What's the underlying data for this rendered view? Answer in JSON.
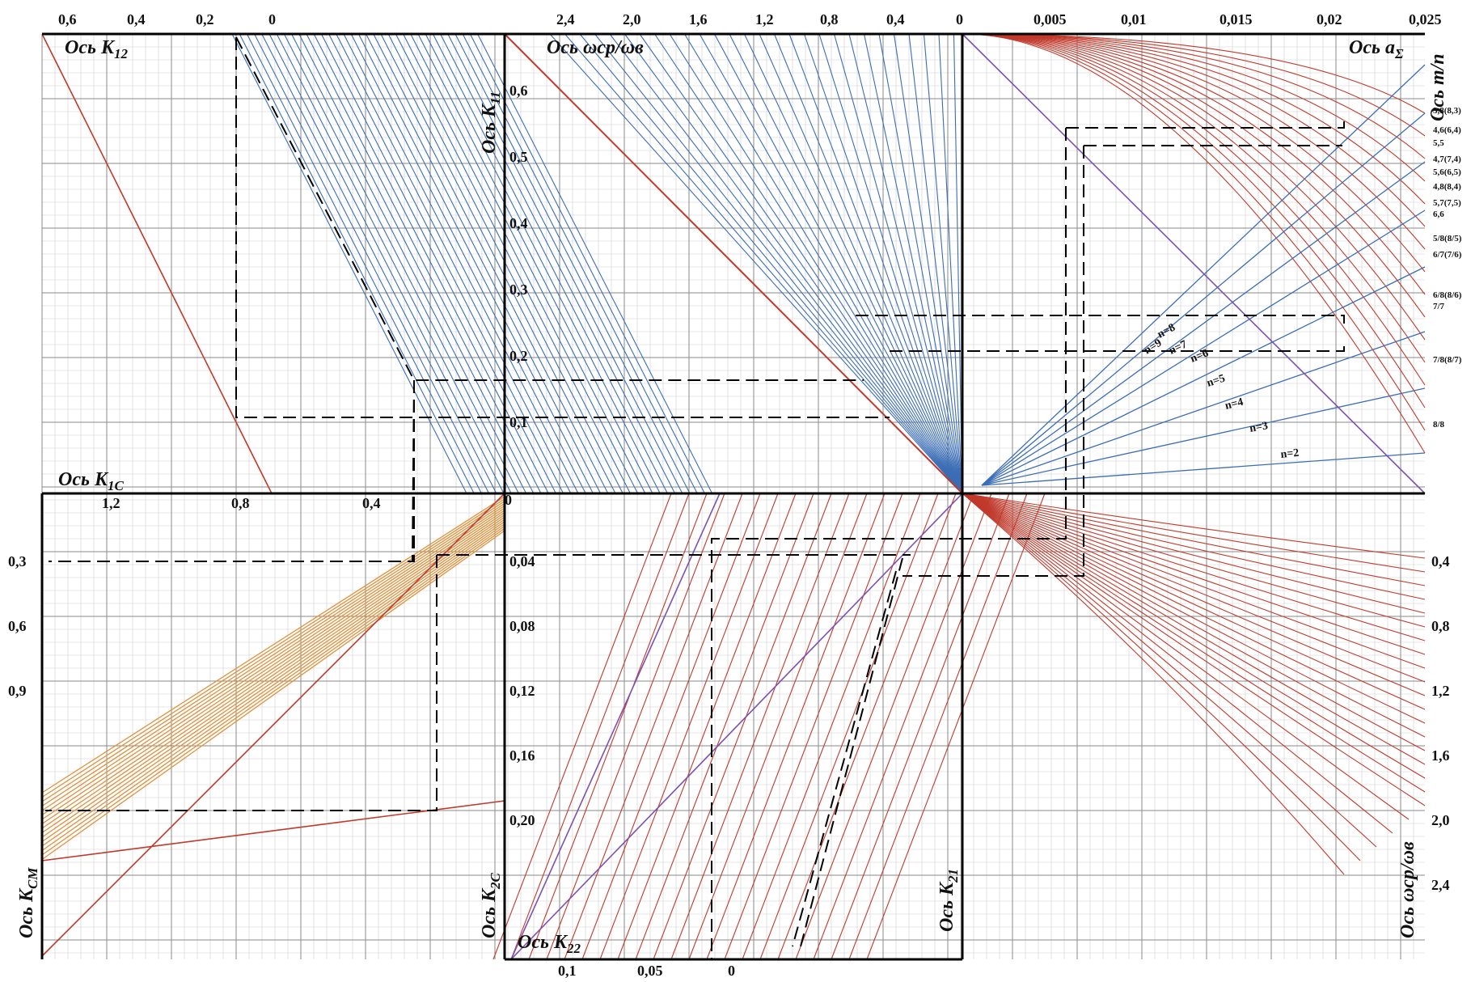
{
  "colors": {
    "blue": "#3b6db5",
    "red": "#c0392b",
    "orange": "#e0903a",
    "purple": "#7b52b0",
    "axis": "#000000"
  },
  "axis_titles": {
    "k12": "Ось K",
    "k12_sub": "12",
    "wsr_top": "Ось ωср/ωв",
    "k11": "Ось K",
    "k11_sub": "11",
    "a_sigma": "Ось a",
    "a_sigma_sub": "Σ",
    "m_n": "Ось m/n",
    "k1c": "Ось K",
    "k1c_sub": "1C",
    "kcm": "Ось K",
    "kcm_sub": "CM",
    "k2c": "Ось K",
    "k2c_sub": "2C",
    "k22": "Ось K",
    "k22_sub": "22",
    "k21": "Ось K",
    "k21_sub": "21",
    "wsr_right": "Ось ωср/ωв"
  },
  "chart_data": {
    "type": "nomogram",
    "quadrants": [
      {
        "name": "K12",
        "axis_ticks": [
          "0,6",
          "0,4",
          "0,2",
          "0"
        ]
      },
      {
        "name": "ωср/ωв vs K11",
        "top_ticks": [
          "2,4",
          "2,0",
          "1,6",
          "1,2",
          "0,8",
          "0,4",
          "0"
        ],
        "left_ticks": [
          "0,6",
          "0,5",
          "0,4",
          "0,3",
          "0,2",
          "0,1"
        ]
      },
      {
        "name": "aΣ vs m/n",
        "top_ticks": [
          "0,005",
          "0,01",
          "0,015",
          "0,02",
          "0,025"
        ],
        "curve_labels": [
          "3,8(8,3)",
          "4,6(6,4)",
          "5,5",
          "4,7(7,4)",
          "5,6(6,5)",
          "4,8(8,4)",
          "5,7(7,5)",
          "6,6",
          "5/8(8/5)",
          "6/7(7/6)",
          "6/8(8/6)",
          "7/7",
          "7/8(8/7)",
          "8/8"
        ],
        "n_lines": [
          "n=9",
          "n=8",
          "n=7",
          "n=6",
          "n=5",
          "n=4",
          "n=3",
          "n=2"
        ]
      },
      {
        "name": "K1C vs KCM",
        "top_ticks": [
          "1,2",
          "0,8",
          "0,4"
        ],
        "left_ticks": [
          "0,3",
          "0,6",
          "0,9"
        ]
      },
      {
        "name": "K2C vs K22",
        "left_ticks": [
          "0",
          "0,04",
          "0,08",
          "0,12",
          "0,16",
          "0,20"
        ],
        "bottom_ticks": [
          "0,1",
          "0,05",
          "0"
        ]
      },
      {
        "name": "ωср/ωв (right)",
        "right_ticks": [
          "0,4",
          "0,8",
          "1,2",
          "1,6",
          "2,0",
          "2,4"
        ]
      }
    ]
  }
}
